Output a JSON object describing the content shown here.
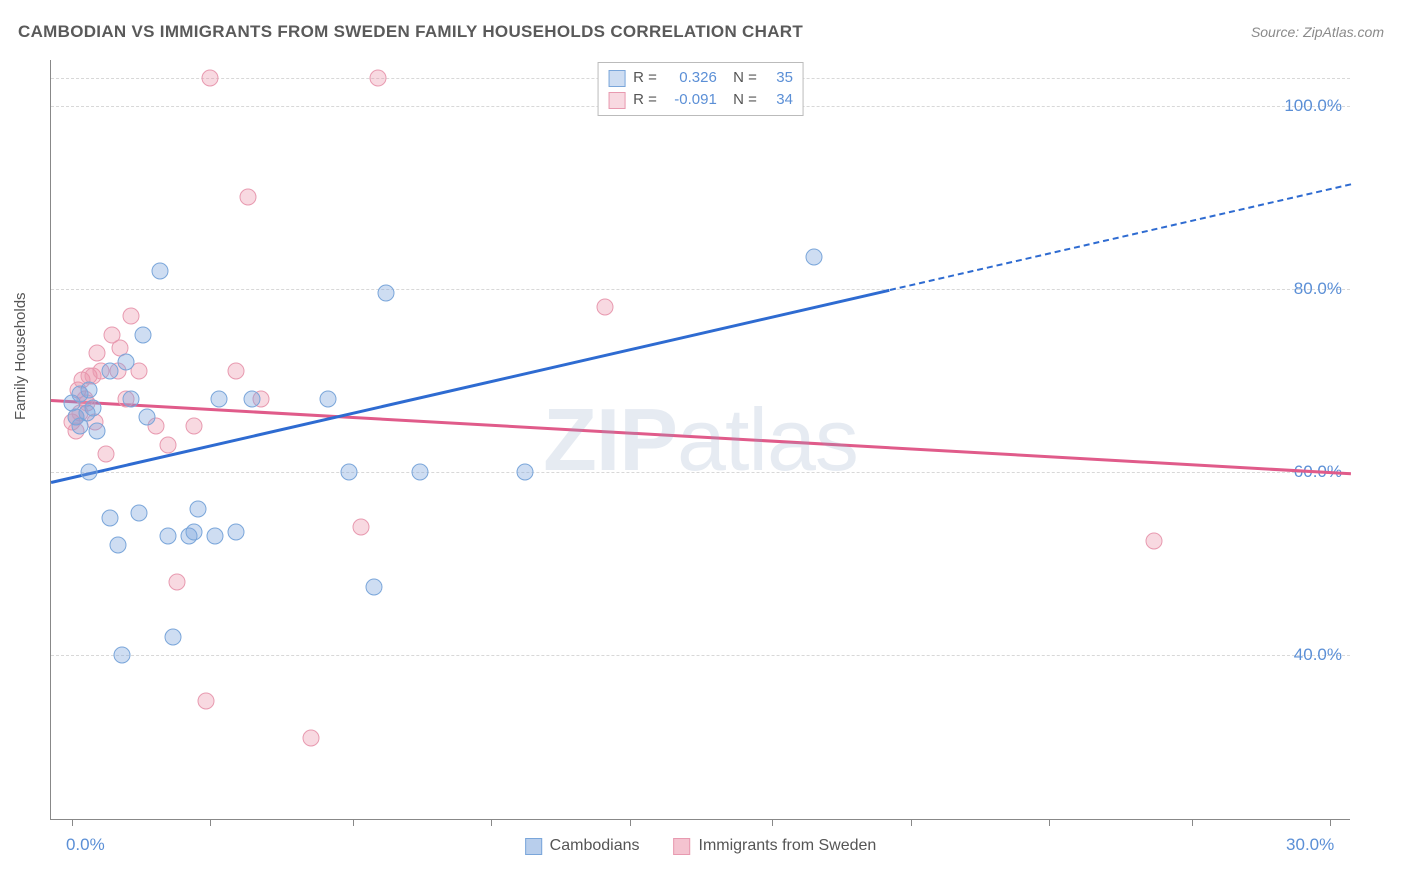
{
  "title": "CAMBODIAN VS IMMIGRANTS FROM SWEDEN FAMILY HOUSEHOLDS CORRELATION CHART",
  "source": "Source: ZipAtlas.com",
  "yaxis_title": "Family Households",
  "watermark": {
    "bold": "ZIP",
    "rest": "atlas"
  },
  "chart": {
    "type": "scatter",
    "background_color": "#ffffff",
    "grid_color": "#d8d8d8",
    "xlim": [
      -0.5,
      30.5
    ],
    "ylim": [
      22,
      105
    ],
    "xticks": [
      0,
      3.3,
      6.7,
      10.0,
      13.3,
      16.7,
      20.0,
      23.3,
      26.7,
      30.0
    ],
    "xtick_labels": {
      "0": "0.0%",
      "30": "30.0%"
    },
    "ygrid": [
      40,
      60,
      80,
      100,
      103
    ],
    "ytick_labels": {
      "40": "40.0%",
      "60": "60.0%",
      "80": "80.0%",
      "100": "100.0%"
    },
    "marker_radius": 8.5,
    "marker_stroke_width": 1.4,
    "axis_label_color": "#5b8fd6",
    "axis_label_fontsize": 17,
    "series": [
      {
        "name": "Cambodians",
        "color_fill": "rgba(125,165,220,0.38)",
        "color_stroke": "#7aa6da",
        "trend_color": "#2e6bd1",
        "R": "0.326",
        "N": "35",
        "trend": {
          "x1": -0.5,
          "y1": 59.0,
          "x2": 19.5,
          "y2": 80.0,
          "dash_to_x": 30.5,
          "slope_dash": true
        },
        "points": [
          [
            0.0,
            67.5
          ],
          [
            0.1,
            66.0
          ],
          [
            0.2,
            68.5
          ],
          [
            0.2,
            65.0
          ],
          [
            0.35,
            66.5
          ],
          [
            0.4,
            69.0
          ],
          [
            0.4,
            60.0
          ],
          [
            0.5,
            67.0
          ],
          [
            0.6,
            64.5
          ],
          [
            0.9,
            71.0
          ],
          [
            0.9,
            55.0
          ],
          [
            1.1,
            52.0
          ],
          [
            1.2,
            40.0
          ],
          [
            1.3,
            72.0
          ],
          [
            1.4,
            68.0
          ],
          [
            1.6,
            55.5
          ],
          [
            1.7,
            75.0
          ],
          [
            1.8,
            66.0
          ],
          [
            2.1,
            82.0
          ],
          [
            2.3,
            53.0
          ],
          [
            2.4,
            42.0
          ],
          [
            2.8,
            53.0
          ],
          [
            2.9,
            53.5
          ],
          [
            3.0,
            56.0
          ],
          [
            3.4,
            53.0
          ],
          [
            3.5,
            68.0
          ],
          [
            3.9,
            53.5
          ],
          [
            4.3,
            68.0
          ],
          [
            6.1,
            68.0
          ],
          [
            6.6,
            60.0
          ],
          [
            7.2,
            47.5
          ],
          [
            7.5,
            79.5
          ],
          [
            8.3,
            60.0
          ],
          [
            10.8,
            60.0
          ],
          [
            17.7,
            83.5
          ]
        ]
      },
      {
        "name": "Immigrants from Sweden",
        "color_fill": "rgba(235,145,170,0.35)",
        "color_stroke": "#e89ab0",
        "trend_color": "#e05b8a",
        "R": "-0.091",
        "N": "34",
        "trend": {
          "x1": -0.5,
          "y1": 68.0,
          "x2": 30.5,
          "y2": 60.0
        },
        "points": [
          [
            0.0,
            65.5
          ],
          [
            0.1,
            66.0
          ],
          [
            0.1,
            64.5
          ],
          [
            0.15,
            69.0
          ],
          [
            0.2,
            66.5
          ],
          [
            0.25,
            70.0
          ],
          [
            0.3,
            68.0
          ],
          [
            0.35,
            67.5
          ],
          [
            0.4,
            70.5
          ],
          [
            0.5,
            70.5
          ],
          [
            0.55,
            65.5
          ],
          [
            0.6,
            73.0
          ],
          [
            0.7,
            71.0
          ],
          [
            0.8,
            62.0
          ],
          [
            0.95,
            75.0
          ],
          [
            1.1,
            71.0
          ],
          [
            1.15,
            73.5
          ],
          [
            1.3,
            68.0
          ],
          [
            1.4,
            77.0
          ],
          [
            1.6,
            71.0
          ],
          [
            2.0,
            65.0
          ],
          [
            2.3,
            63.0
          ],
          [
            2.5,
            48.0
          ],
          [
            2.9,
            65.0
          ],
          [
            3.2,
            35.0
          ],
          [
            3.3,
            103.0
          ],
          [
            3.9,
            71.0
          ],
          [
            4.2,
            90.0
          ],
          [
            4.5,
            68.0
          ],
          [
            5.7,
            31.0
          ],
          [
            6.9,
            54.0
          ],
          [
            7.3,
            103.0
          ],
          [
            12.7,
            78.0
          ],
          [
            25.8,
            52.5
          ]
        ]
      }
    ],
    "legend_bottom": [
      {
        "label": "Cambodians",
        "fill": "rgba(125,165,220,0.55)",
        "stroke": "#7aa6da"
      },
      {
        "label": "Immigrants from Sweden",
        "fill": "rgba(235,145,170,0.55)",
        "stroke": "#e89ab0"
      }
    ]
  }
}
